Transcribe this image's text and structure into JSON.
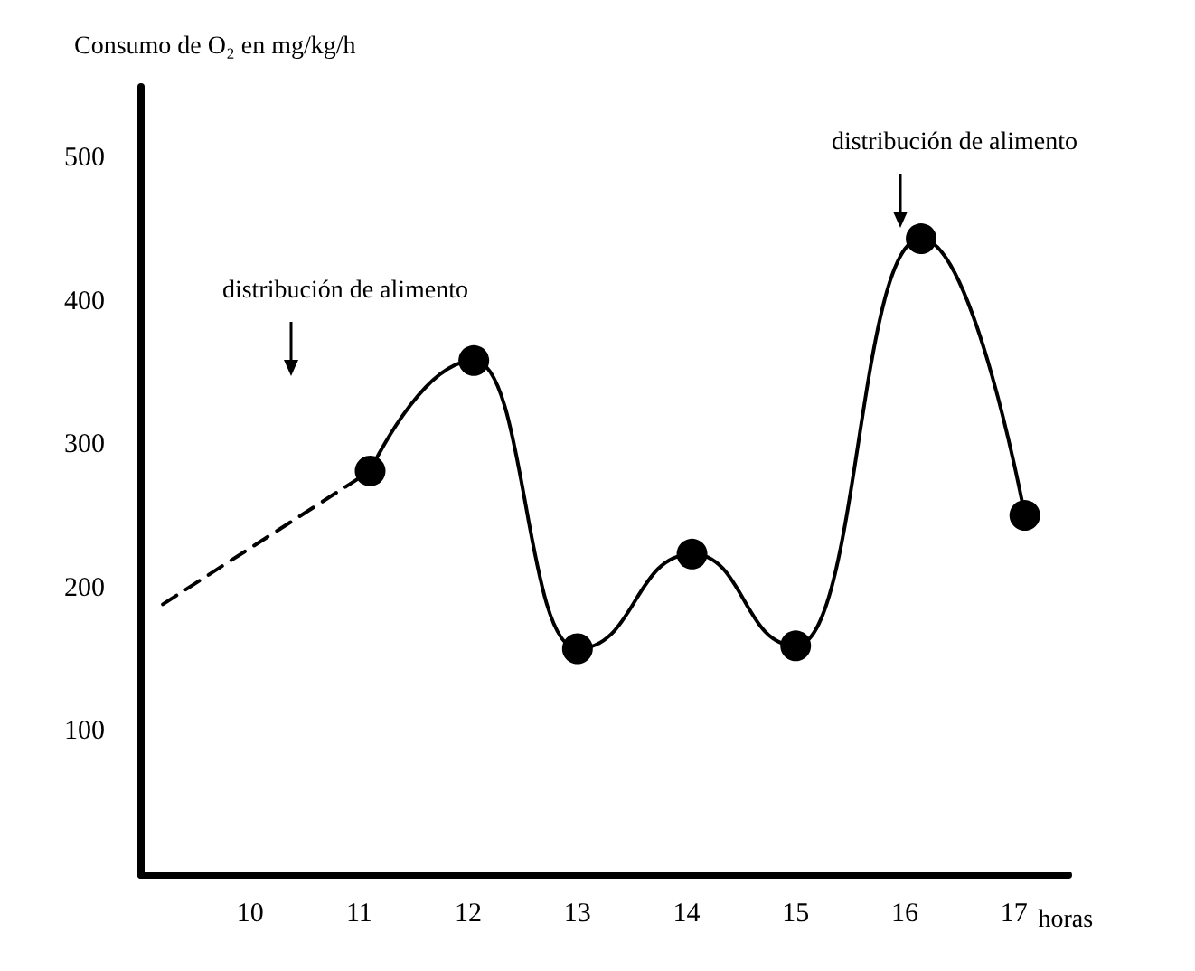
{
  "chart_data": {
    "type": "line",
    "ylabel": "Consumo de O₂ en mg/kg/h",
    "xlabel": "horas",
    "xlim": [
      9,
      17.5
    ],
    "xticks": [
      10,
      11,
      12,
      13,
      14,
      15,
      16,
      17
    ],
    "ylim": [
      0,
      550
    ],
    "yticks": [
      100,
      200,
      300,
      400,
      500
    ],
    "grid": false,
    "series": [
      {
        "color": "#000000",
        "line_style": "dashed",
        "x": [
          9.2,
          11.1
        ],
        "values": [
          189,
          282
        ]
      },
      {
        "color": "#000000",
        "line_style": "solid",
        "marker": "circle",
        "x": [
          11.1,
          12.05,
          13.0,
          14.05,
          15.0,
          16.15,
          17.1
        ],
        "values": [
          282,
          359,
          158,
          224,
          160,
          444,
          251
        ]
      }
    ],
    "annotations": [
      "distribución de alimento",
      "distribución de alimento"
    ]
  }
}
